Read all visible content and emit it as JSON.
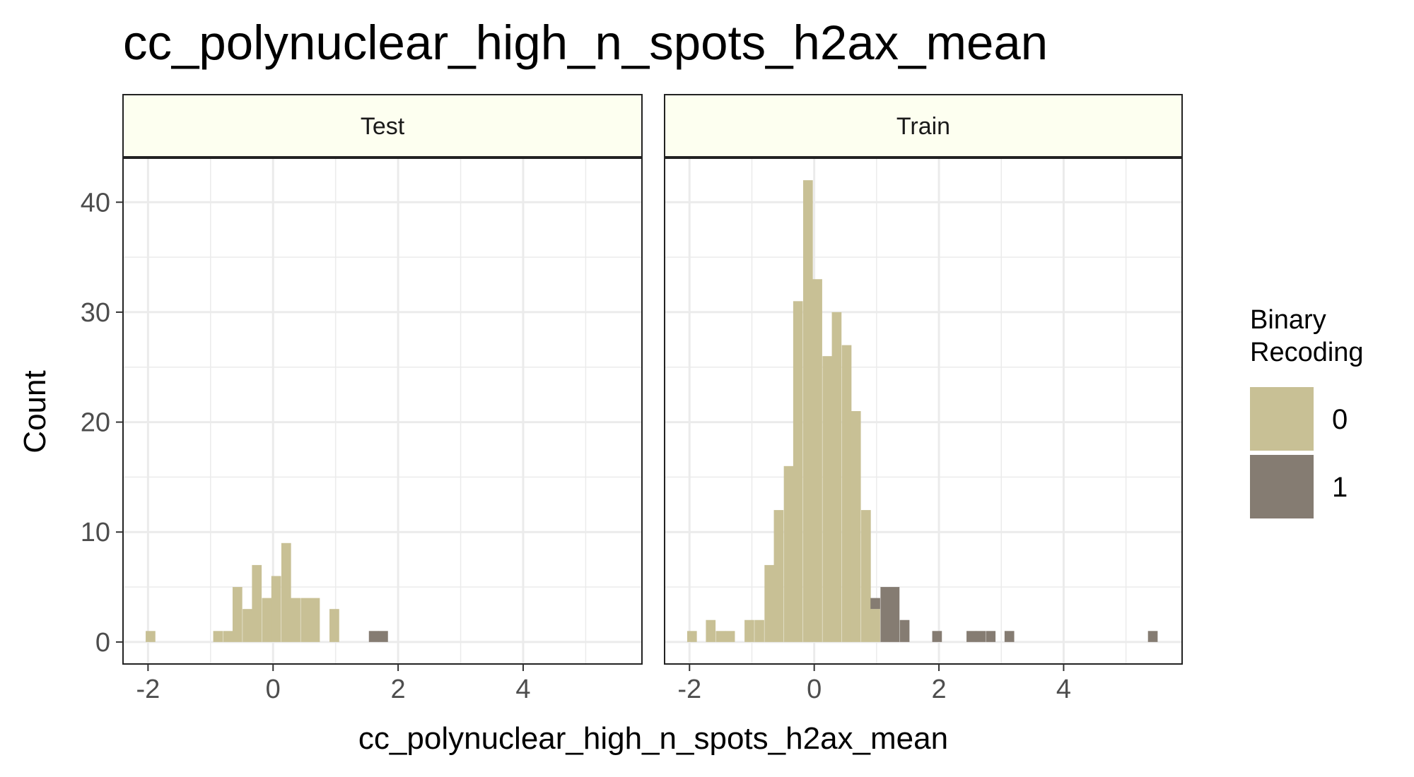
{
  "chart_data": {
    "type": "bar",
    "chart_style": "faceted histogram",
    "title": "cc_polynuclear_high_n_spots_h2ax_mean",
    "xlabel": "cc_polynuclear_high_n_spots_h2ax_mean",
    "ylabel": "Count",
    "xlim": [
      -2.4,
      5.9
    ],
    "ylim": [
      -2,
      44
    ],
    "xticks": [
      -2,
      0,
      2,
      4
    ],
    "xtick_labels": [
      "-2",
      "0",
      "2",
      "4"
    ],
    "yticks": [
      0,
      10,
      20,
      30,
      40
    ],
    "ytick_labels": [
      "0",
      "10",
      "20",
      "30",
      "40"
    ],
    "grid": true,
    "legend": {
      "title": "Binary\nRecoding",
      "placement": "right",
      "entries": [
        {
          "label": "0",
          "color": "#c8c095"
        },
        {
          "label": "1",
          "color": "#857c72"
        }
      ]
    },
    "colors": {
      "class0": "#c8c095",
      "class1": "#857c72",
      "strip": "#fdfff0",
      "grid": "#ebebeb"
    },
    "bin_width": 0.155,
    "panels": [
      {
        "name": "Test",
        "series": [
          {
            "name": "0",
            "bins": [
              {
                "x": -1.96,
                "v": 1
              },
              {
                "x": -0.88,
                "v": 1
              },
              {
                "x": -0.72,
                "v": 1
              },
              {
                "x": -0.57,
                "v": 5
              },
              {
                "x": -0.41,
                "v": 3
              },
              {
                "x": -0.26,
                "v": 7
              },
              {
                "x": -0.1,
                "v": 4
              },
              {
                "x": 0.05,
                "v": 6
              },
              {
                "x": 0.21,
                "v": 9
              },
              {
                "x": 0.36,
                "v": 4
              },
              {
                "x": 0.52,
                "v": 4
              },
              {
                "x": 0.67,
                "v": 4
              },
              {
                "x": 0.98,
                "v": 3
              }
            ]
          },
          {
            "name": "1",
            "bins": [
              {
                "x": 1.61,
                "v": 1
              },
              {
                "x": 1.76,
                "v": 1
              }
            ]
          }
        ]
      },
      {
        "name": "Train",
        "series": [
          {
            "name": "0",
            "bins": [
              {
                "x": -1.96,
                "v": 1
              },
              {
                "x": -1.66,
                "v": 2
              },
              {
                "x": -1.5,
                "v": 1
              },
              {
                "x": -1.35,
                "v": 1
              },
              {
                "x": -1.04,
                "v": 2
              },
              {
                "x": -0.88,
                "v": 2
              },
              {
                "x": -0.72,
                "v": 7
              },
              {
                "x": -0.57,
                "v": 12
              },
              {
                "x": -0.41,
                "v": 16
              },
              {
                "x": -0.26,
                "v": 31
              },
              {
                "x": -0.1,
                "v": 42
              },
              {
                "x": 0.05,
                "v": 33
              },
              {
                "x": 0.21,
                "v": 26
              },
              {
                "x": 0.36,
                "v": 30
              },
              {
                "x": 0.52,
                "v": 27
              },
              {
                "x": 0.67,
                "v": 21
              },
              {
                "x": 0.83,
                "v": 12
              },
              {
                "x": 0.98,
                "v": 3
              },
              {
                "x": 1.14,
                "v": 0
              }
            ]
          },
          {
            "name": "1",
            "bins": [
              {
                "x": 0.98,
                "v": 4,
                "base": 3
              },
              {
                "x": 1.14,
                "v": 5
              },
              {
                "x": 1.29,
                "v": 5
              },
              {
                "x": 1.45,
                "v": 2
              },
              {
                "x": 1.97,
                "v": 1
              },
              {
                "x": 2.52,
                "v": 1
              },
              {
                "x": 2.67,
                "v": 1
              },
              {
                "x": 2.83,
                "v": 1
              },
              {
                "x": 3.13,
                "v": 1
              },
              {
                "x": 5.43,
                "v": 1
              }
            ]
          }
        ]
      }
    ]
  }
}
